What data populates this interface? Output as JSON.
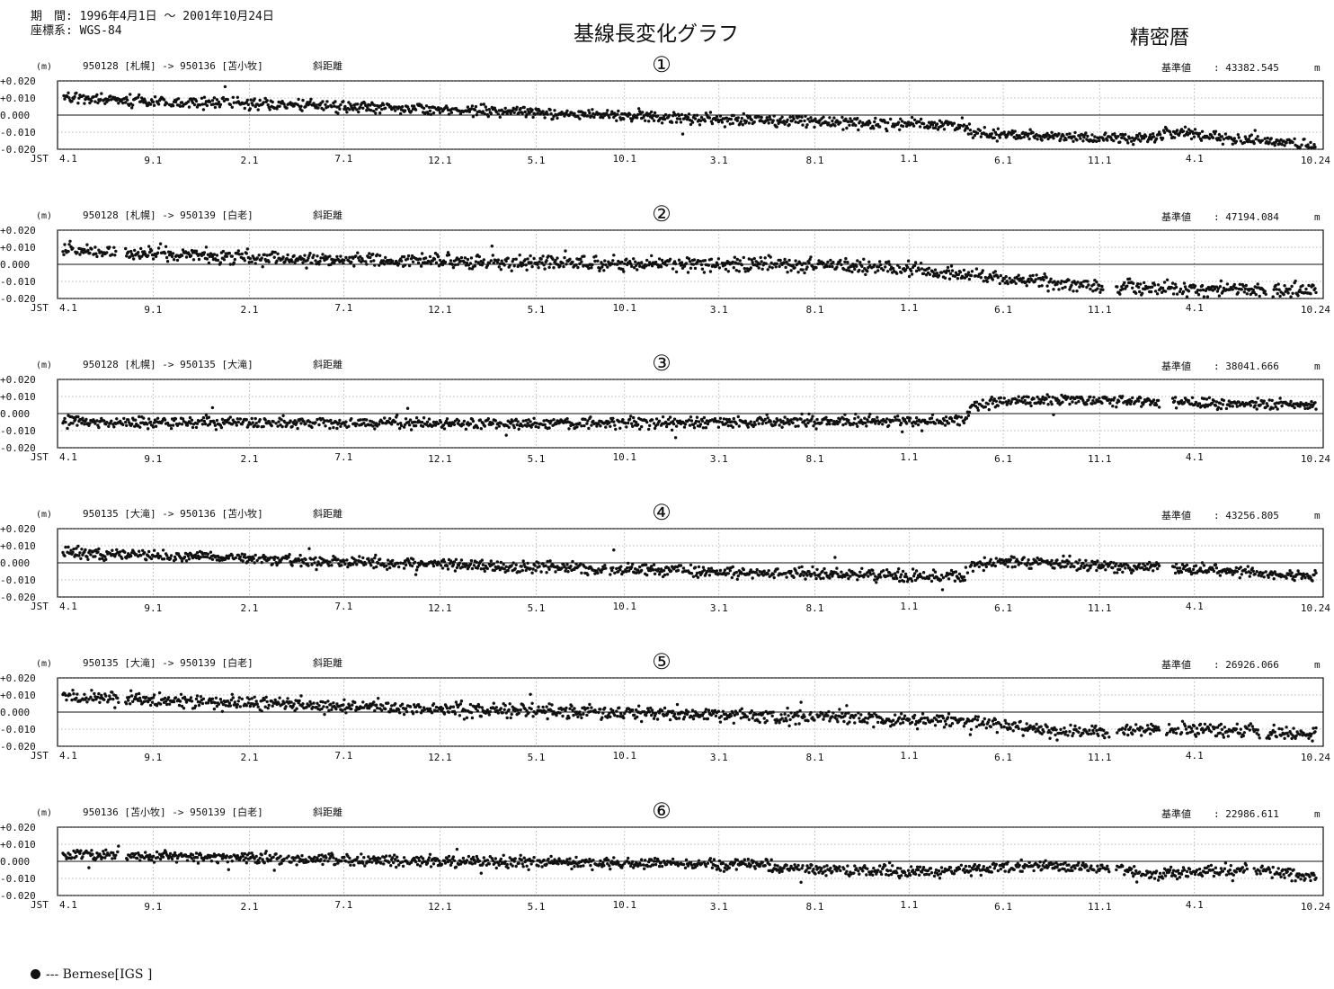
{
  "header": {
    "period": "期　間: 1996年4月1日 ～ 2001年10月24日",
    "coordinate_system": "座標系: WGS-84",
    "title": "基線長変化グラフ",
    "ephemeris": "精密暦"
  },
  "legend": {
    "label": "--- Bernese[IGS    ]"
  },
  "chart_data": [
    {
      "type": "scatter",
      "number": "①",
      "unit": "(m)",
      "baseline": "950128 [札幌] -> 950136 [苫小牧]",
      "measure": "斜距離",
      "reference_label": "基準値",
      "reference_value": ": 43382.545",
      "reference_unit": "m",
      "ylim": [
        -0.02,
        0.02
      ],
      "y_ticks": [
        "+0.020",
        "+0.010",
        "0.000",
        "-0.010",
        "-0.020"
      ],
      "x_axis_label": "JST",
      "x_ticks": [
        "4.1",
        "9.1",
        "2.1",
        "7.1",
        "12.1",
        "5.1",
        "10.1",
        "3.1",
        "8.1",
        "1.1",
        "6.1",
        "11.1",
        "4.1",
        "10.24"
      ],
      "series": [
        {
          "profile": [
            [
              0,
              0.01
            ],
            [
              0.35,
              0.002
            ],
            [
              0.6,
              -0.004
            ],
            [
              0.72,
              -0.006
            ],
            [
              0.725,
              -0.011
            ],
            [
              0.87,
              -0.014
            ],
            [
              0.88,
              -0.01
            ],
            [
              1.0,
              -0.018
            ]
          ],
          "noise": 0.0016,
          "gaps": []
        }
      ]
    },
    {
      "type": "scatter",
      "number": "②",
      "unit": "(m)",
      "baseline": "950128 [札幌] -> 950139 [白老]",
      "measure": "斜距離",
      "reference_label": "基準値",
      "reference_value": ": 47194.084",
      "reference_unit": "m",
      "ylim": [
        -0.02,
        0.02
      ],
      "y_ticks": [
        "+0.020",
        "+0.010",
        "0.000",
        "-0.010",
        "-0.020"
      ],
      "x_axis_label": "JST",
      "x_ticks": [
        "4.1",
        "9.1",
        "2.1",
        "7.1",
        "12.1",
        "5.1",
        "10.1",
        "3.1",
        "8.1",
        "1.1",
        "6.1",
        "11.1",
        "4.1",
        "10.24"
      ],
      "series": [
        {
          "profile": [
            [
              0,
              0.008
            ],
            [
              0.2,
              0.003
            ],
            [
              0.45,
              0.0
            ],
            [
              0.6,
              0.0
            ],
            [
              0.66,
              -0.002
            ],
            [
              0.72,
              -0.006
            ],
            [
              0.85,
              -0.014
            ],
            [
              1.0,
              -0.015
            ]
          ],
          "noise": 0.002,
          "gaps": [
            [
              0.045,
              0.05
            ],
            [
              0.83,
              0.84
            ],
            [
              0.96,
              0.965
            ]
          ]
        }
      ]
    },
    {
      "type": "scatter",
      "number": "③",
      "unit": "(m)",
      "baseline": "950128 [札幌] -> 950135 [大滝]",
      "measure": "斜距離",
      "reference_label": "基準値",
      "reference_value": ": 38041.666",
      "reference_unit": "m",
      "ylim": [
        -0.02,
        0.02
      ],
      "y_ticks": [
        "+0.020",
        "+0.010",
        "0.000",
        "-0.010",
        "-0.020"
      ],
      "x_axis_label": "JST",
      "x_ticks": [
        "4.1",
        "9.1",
        "2.1",
        "7.1",
        "12.1",
        "5.1",
        "10.1",
        "3.1",
        "8.1",
        "1.1",
        "6.1",
        "11.1",
        "4.1",
        "10.24"
      ],
      "series": [
        {
          "profile": [
            [
              0,
              -0.005
            ],
            [
              0.35,
              -0.006
            ],
            [
              0.72,
              -0.004
            ],
            [
              0.725,
              0.004
            ],
            [
              0.76,
              0.008
            ],
            [
              0.88,
              0.007
            ],
            [
              1.0,
              0.005
            ]
          ],
          "noise": 0.0016,
          "gaps": [
            [
              0.875,
              0.885
            ]
          ]
        }
      ]
    },
    {
      "type": "scatter",
      "number": "④",
      "unit": "(m)",
      "baseline": "950135 [大滝] -> 950136 [苫小牧]",
      "measure": "斜距離",
      "reference_label": "基準値",
      "reference_value": ": 43256.805",
      "reference_unit": "m",
      "ylim": [
        -0.02,
        0.02
      ],
      "y_ticks": [
        "+0.020",
        "+0.010",
        "0.000",
        "-0.010",
        "-0.020"
      ],
      "x_axis_label": "JST",
      "x_ticks": [
        "4.1",
        "9.1",
        "2.1",
        "7.1",
        "12.1",
        "5.1",
        "10.1",
        "3.1",
        "8.1",
        "1.1",
        "6.1",
        "11.1",
        "4.1",
        "10.24"
      ],
      "series": [
        {
          "profile": [
            [
              0,
              0.006
            ],
            [
              0.3,
              -0.001
            ],
            [
              0.5,
              -0.005
            ],
            [
              0.72,
              -0.008
            ],
            [
              0.725,
              -0.002
            ],
            [
              0.75,
              0.001
            ],
            [
              0.88,
              -0.003
            ],
            [
              1.0,
              -0.008
            ]
          ],
          "noise": 0.0016,
          "gaps": [
            [
              0.875,
              0.885
            ]
          ]
        }
      ]
    },
    {
      "type": "scatter",
      "number": "⑤",
      "unit": "(m)",
      "baseline": "950135 [大滝] -> 950139 [白老]",
      "measure": "斜距離",
      "reference_label": "基準値",
      "reference_value": ": 26926.066",
      "reference_unit": "m",
      "ylim": [
        -0.02,
        0.02
      ],
      "y_ticks": [
        "+0.020",
        "+0.010",
        "0.000",
        "-0.010",
        "-0.020"
      ],
      "x_axis_label": "JST",
      "x_ticks": [
        "4.1",
        "9.1",
        "2.1",
        "7.1",
        "12.1",
        "5.1",
        "10.1",
        "3.1",
        "8.1",
        "1.1",
        "6.1",
        "11.1",
        "4.1",
        "10.24"
      ],
      "series": [
        {
          "profile": [
            [
              0,
              0.009
            ],
            [
              0.2,
              0.004
            ],
            [
              0.4,
              0.0
            ],
            [
              0.55,
              -0.002
            ],
            [
              0.72,
              -0.005
            ],
            [
              0.8,
              -0.012
            ],
            [
              0.88,
              -0.01
            ],
            [
              1.0,
              -0.013
            ]
          ],
          "noise": 0.002,
          "gaps": [
            [
              0.045,
              0.05
            ],
            [
              0.835,
              0.84
            ],
            [
              0.875,
              0.88
            ],
            [
              0.955,
              0.96
            ]
          ]
        }
      ]
    },
    {
      "type": "scatter",
      "number": "⑥",
      "unit": "(m)",
      "baseline": "950136 [苫小牧] -> 950139 [白老]",
      "measure": "斜距離",
      "reference_label": "基準値",
      "reference_value": ": 22986.611",
      "reference_unit": "m",
      "ylim": [
        -0.02,
        0.02
      ],
      "y_ticks": [
        "+0.020",
        "+0.010",
        "0.000",
        "-0.010",
        "-0.020"
      ],
      "x_axis_label": "JST",
      "x_ticks": [
        "4.1",
        "9.1",
        "2.1",
        "7.1",
        "12.1",
        "5.1",
        "10.1",
        "3.1",
        "8.1",
        "1.1",
        "6.1",
        "11.1",
        "4.1",
        "10.24"
      ],
      "series": [
        {
          "profile": [
            [
              0,
              0.004
            ],
            [
              0.3,
              0.0
            ],
            [
              0.55,
              -0.002
            ],
            [
              0.6,
              -0.005
            ],
            [
              0.7,
              -0.006
            ],
            [
              0.78,
              -0.002
            ],
            [
              0.85,
              -0.005
            ],
            [
              0.87,
              -0.008
            ],
            [
              0.95,
              -0.004
            ],
            [
              1.0,
              -0.01
            ]
          ],
          "noise": 0.0016,
          "gaps": [
            [
              0.045,
              0.05
            ],
            [
              0.835,
              0.84
            ],
            [
              0.945,
              0.95
            ]
          ]
        }
      ]
    }
  ]
}
